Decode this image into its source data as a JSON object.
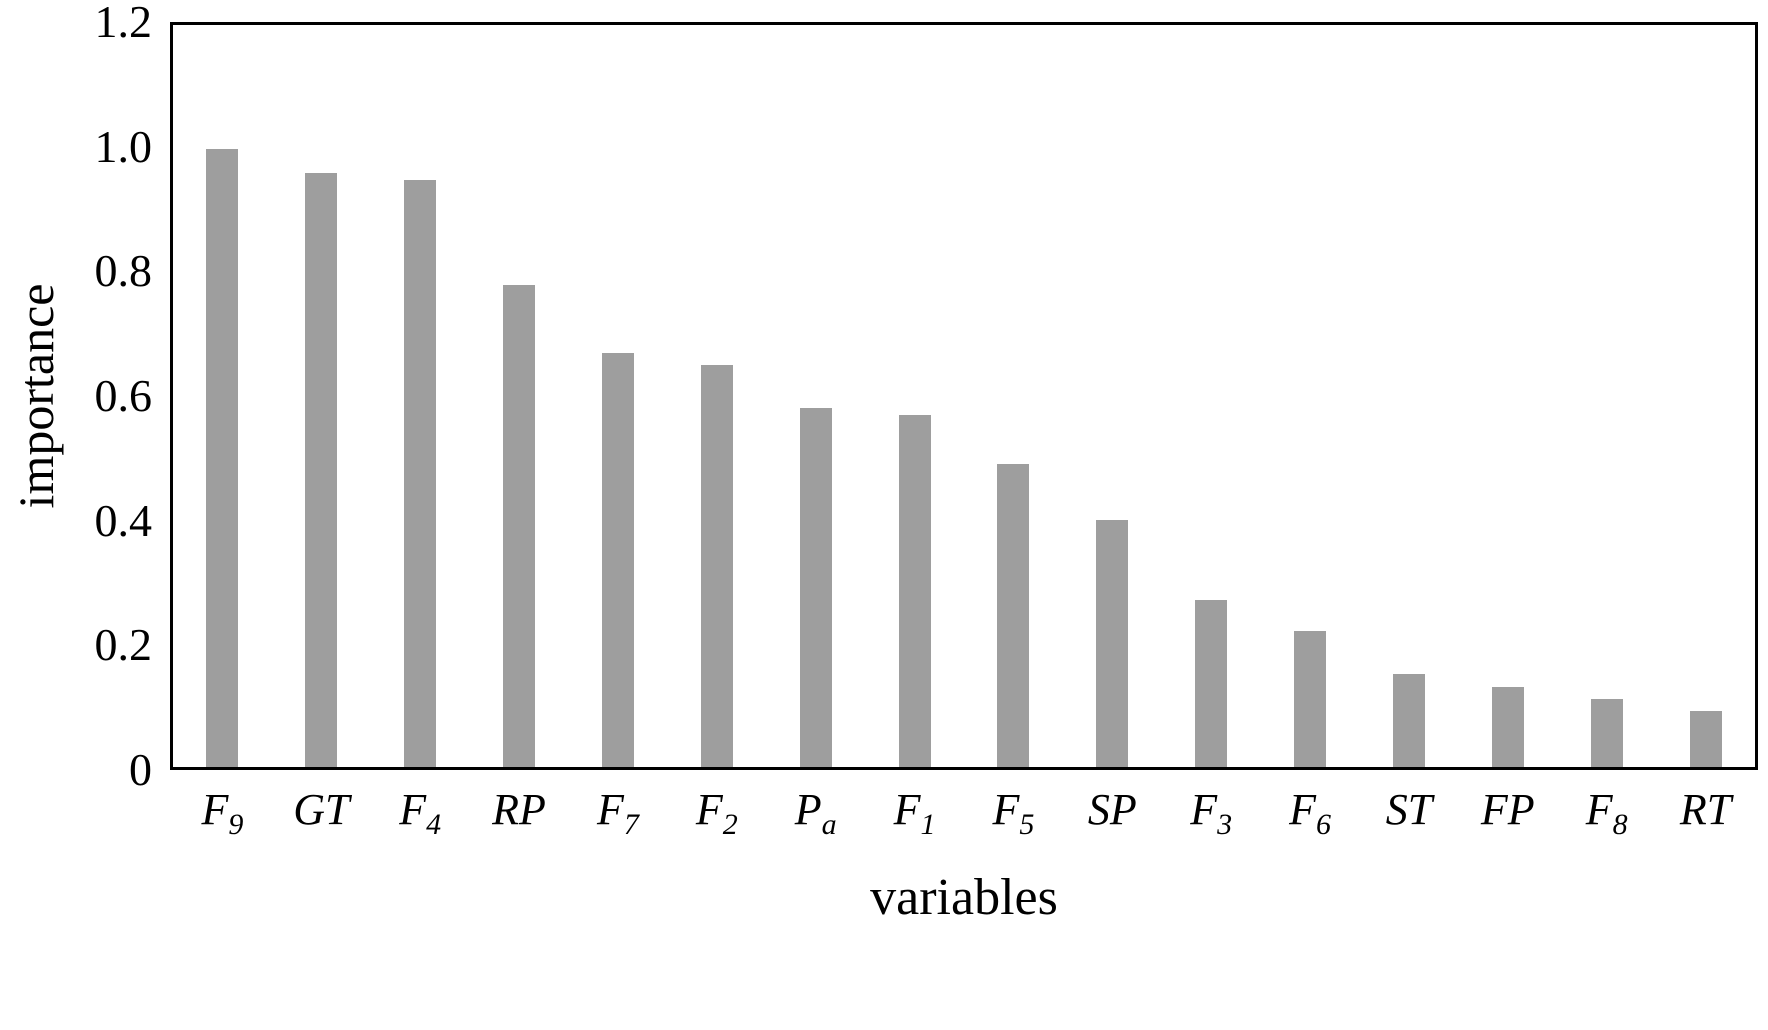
{
  "chart_data": {
    "type": "bar",
    "title": "",
    "xlabel": "variables",
    "ylabel": "importance",
    "ylim": [
      0,
      1.2
    ],
    "ytick_values": [
      0,
      0.2,
      0.4,
      0.6,
      0.8,
      1.0,
      1.2
    ],
    "ytick_labels": [
      "0",
      "0.2",
      "0.4",
      "0.6",
      "0.8",
      "1.0",
      "1.2"
    ],
    "categories": [
      {
        "main": "F",
        "sub": "9"
      },
      {
        "main": "GT",
        "sub": ""
      },
      {
        "main": "F",
        "sub": "4"
      },
      {
        "main": "RP",
        "sub": ""
      },
      {
        "main": "F",
        "sub": "7"
      },
      {
        "main": "F",
        "sub": "2"
      },
      {
        "main": "P",
        "sub": "a"
      },
      {
        "main": "F",
        "sub": "1"
      },
      {
        "main": "F",
        "sub": "5"
      },
      {
        "main": "SP",
        "sub": ""
      },
      {
        "main": "F",
        "sub": "3"
      },
      {
        "main": "F",
        "sub": "6"
      },
      {
        "main": "ST",
        "sub": ""
      },
      {
        "main": "FP",
        "sub": ""
      },
      {
        "main": "F",
        "sub": "8"
      },
      {
        "main": "RT",
        "sub": ""
      }
    ],
    "values": [
      1.0,
      0.96,
      0.95,
      0.78,
      0.67,
      0.65,
      0.58,
      0.57,
      0.49,
      0.4,
      0.27,
      0.22,
      0.15,
      0.13,
      0.11,
      0.09
    ],
    "bar_color": "#9e9e9e",
    "grid": false,
    "legend": "none",
    "plot_border_color": "#000000"
  }
}
